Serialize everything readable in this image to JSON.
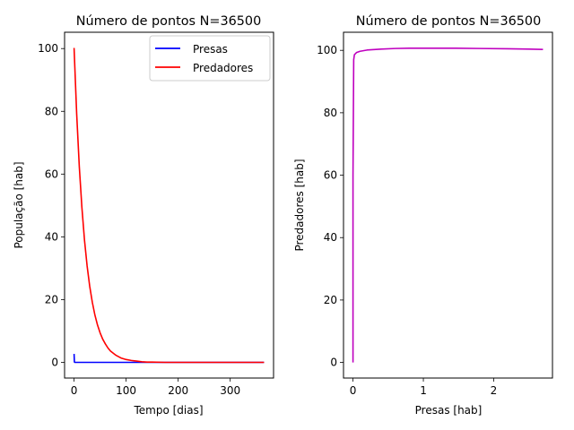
{
  "colors": {
    "prey": "#0000ff",
    "predator": "#ff0000",
    "phase": "#bf00bf",
    "axis": "#000000",
    "background": "#ffffff"
  },
  "chart_data": [
    {
      "type": "line",
      "title": "Número de pontos N=36500",
      "xlabel": "Tempo [dias]",
      "ylabel": "População [hab]",
      "xlim": [
        -18.25,
        383.25
      ],
      "ylim": [
        -5.0,
        105.2
      ],
      "xticks": [
        0,
        100,
        200,
        300
      ],
      "xtick_labels": [
        "0",
        "100",
        "200",
        "300"
      ],
      "yticks": [
        0,
        20,
        40,
        60,
        80,
        100
      ],
      "ytick_labels": [
        "0",
        "20",
        "40",
        "60",
        "80",
        "100"
      ],
      "grid": false,
      "legend": {
        "placement": "upper right",
        "entries": [
          "Presas",
          "Predadores"
        ]
      },
      "series": [
        {
          "name": "Presas",
          "color": "#0000ff",
          "x": [
            0,
            0.3,
            0.6,
            1,
            2,
            5,
            10,
            30,
            60,
            100,
            150,
            200,
            250,
            300,
            365
          ],
          "y": [
            2.7,
            1.5,
            0.2,
            0.0,
            0.0,
            0.0,
            0.0,
            0.0,
            0.0,
            0.0,
            0.0,
            0.0,
            0.0,
            0.0,
            0.0
          ]
        },
        {
          "name": "Predadores",
          "color": "#ff0000",
          "x": [
            0,
            5,
            10,
            15,
            20,
            25,
            30,
            35,
            40,
            45,
            50,
            55,
            60,
            65,
            70,
            80,
            90,
            100,
            110,
            120,
            130,
            140,
            150,
            175,
            200,
            250,
            300,
            365
          ],
          "y": [
            100.2,
            79.2,
            62.5,
            49.4,
            39.0,
            30.8,
            24.3,
            19.2,
            15.1,
            11.9,
            9.4,
            7.4,
            5.9,
            4.6,
            3.6,
            2.3,
            1.4,
            0.9,
            0.6,
            0.4,
            0.2,
            0.1,
            0.1,
            0.0,
            0.0,
            0.0,
            0.0,
            0.0
          ]
        }
      ]
    },
    {
      "type": "line",
      "title": "Número de pontos N=36500",
      "xlabel": "Presas [hab]",
      "ylabel": "Predadores [hab]",
      "xlim": [
        -0.135,
        2.835
      ],
      "ylim": [
        -5.0,
        105.8
      ],
      "xticks": [
        0,
        1,
        2
      ],
      "xtick_labels": [
        "0",
        "1",
        "2"
      ],
      "yticks": [
        0,
        20,
        40,
        60,
        80,
        100
      ],
      "ytick_labels": [
        "0",
        "20",
        "40",
        "60",
        "80",
        "100"
      ],
      "grid": false,
      "series": [
        {
          "color": "#bf00bf",
          "x": [
            0.0,
            0.0,
            0.01,
            0.02,
            0.05,
            0.1,
            0.2,
            0.4,
            0.6,
            0.8,
            1.0,
            1.4,
            1.8,
            2.2,
            2.5,
            2.7
          ],
          "y": [
            0.0,
            60.0,
            97.0,
            98.6,
            99.3,
            99.7,
            100.1,
            100.4,
            100.6,
            100.7,
            100.7,
            100.7,
            100.6,
            100.5,
            100.4,
            100.3
          ]
        }
      ]
    }
  ]
}
